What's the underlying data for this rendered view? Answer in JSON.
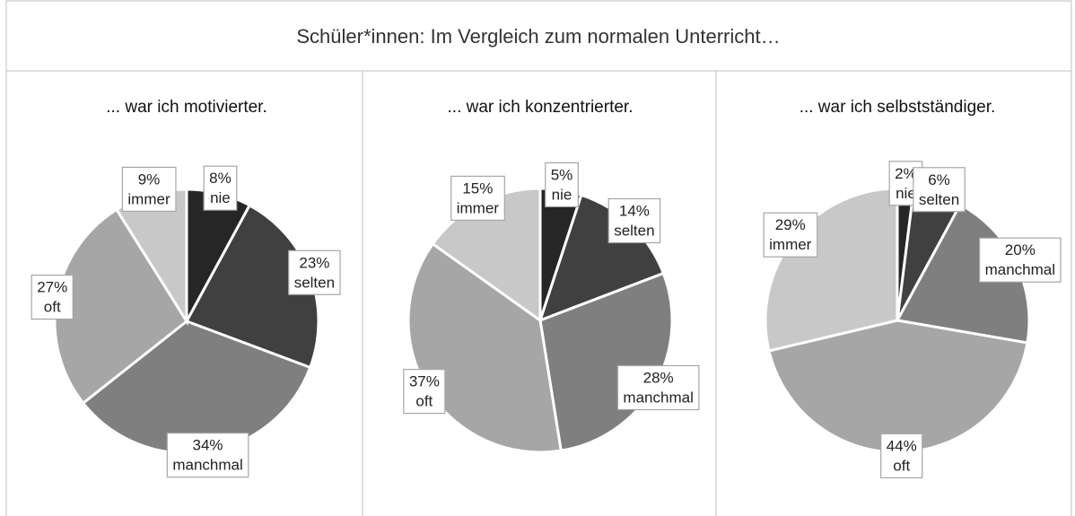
{
  "title": "Schüler*innen: Im Vergleich zum normalen Unterricht…",
  "chart_data": [
    {
      "type": "pie",
      "title": "... war ich motivierter.",
      "categories": [
        "nie",
        "selten",
        "manchmal",
        "oft",
        "immer"
      ],
      "values": [
        8,
        23,
        34,
        27,
        9
      ],
      "value_labels": [
        "8%",
        "23%",
        "34%",
        "27%",
        "9%"
      ],
      "colors": [
        "#262626",
        "#404040",
        "#7f7f7f",
        "#a6a6a6",
        "#c8c8c8"
      ]
    },
    {
      "type": "pie",
      "title": "... war ich konzentrierter.",
      "categories": [
        "nie",
        "selten",
        "manchmal",
        "oft",
        "immer"
      ],
      "values": [
        5,
        14,
        28,
        37,
        15
      ],
      "value_labels": [
        "5%",
        "14%",
        "28%",
        "37%",
        "15%"
      ],
      "colors": [
        "#262626",
        "#404040",
        "#7f7f7f",
        "#a6a6a6",
        "#c8c8c8"
      ]
    },
    {
      "type": "pie",
      "title": "... war ich selbstständiger.",
      "categories": [
        "nie",
        "selten",
        "manchmal",
        "oft",
        "immer"
      ],
      "values": [
        2,
        6,
        20,
        44,
        29
      ],
      "value_labels": [
        "2%",
        "6%",
        "20%",
        "44%",
        "29%"
      ],
      "colors": [
        "#262626",
        "#404040",
        "#7f7f7f",
        "#a6a6a6",
        "#c8c8c8"
      ]
    }
  ]
}
